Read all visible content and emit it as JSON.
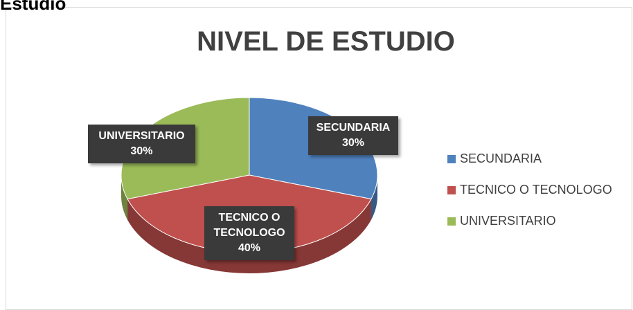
{
  "heading": "Estudio",
  "chart_data": {
    "type": "pie",
    "title": "NIVEL DE ESTUDIO",
    "categories": [
      "SECUNDARIA",
      "TECNICO O TECNOLOGO",
      "UNIVERSITARIO"
    ],
    "values": [
      30,
      40,
      30
    ],
    "value_labels": [
      "30%",
      "40%",
      "30%"
    ],
    "colors": [
      "#4f81bd",
      "#c0504d",
      "#9bbb59"
    ],
    "legend": "right"
  }
}
